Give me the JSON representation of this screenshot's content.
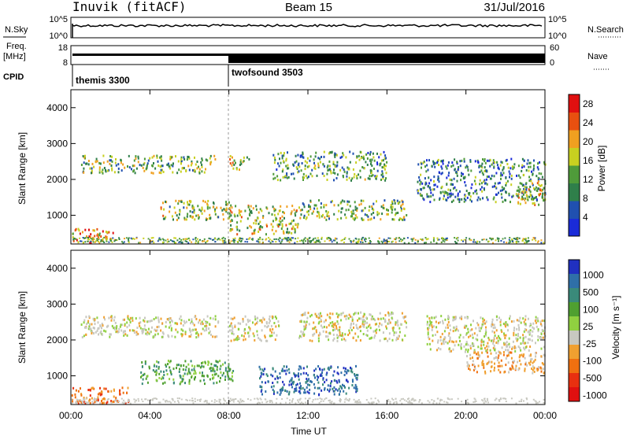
{
  "header": {
    "station": "Inuvik (fitACF)",
    "beam": "Beam 15",
    "date": "31/Jul/2016"
  },
  "top_panels": {
    "nsky_label": "N.Sky",
    "nsky_ticks": [
      "10^5",
      "10^0"
    ],
    "nsearch_label": "N.Search",
    "nsearch_ticks": [
      "10^5",
      "10^0"
    ],
    "freq_label": "Freq.",
    "freq_unit": "[MHz]",
    "freq_ticks": [
      "18",
      "8"
    ],
    "nave_label": "Nave",
    "nave_ticks": [
      "60",
      "0"
    ],
    "cpid_label": "CPID",
    "cpid_segments": [
      {
        "name": "themis 3300",
        "start_hour": 0
      },
      {
        "name": "twofsound 3503",
        "start_hour": 8
      }
    ]
  },
  "chart_data": [
    {
      "type": "heatmap",
      "title": "",
      "ylabel": "Slant Range [km]",
      "xlabel": "",
      "xlim": [
        0,
        24
      ],
      "ylim": [
        200,
        4500
      ],
      "yticks": [
        1000,
        2000,
        3000,
        4000
      ],
      "colorbar": {
        "label": "Power [dB]",
        "ticks": [
          "28",
          "24",
          "20",
          "16",
          "12",
          "8",
          "4"
        ],
        "range": [
          0,
          30
        ],
        "colors": [
          "#1a2bd8",
          "#2050b0",
          "#2f7f4a",
          "#4f9b3a",
          "#c8d020",
          "#f0a020",
          "#e85010",
          "#e01010"
        ]
      },
      "regions": [
        {
          "t0": 0.0,
          "t1": 2.2,
          "r0": 250,
          "r1": 650,
          "v": 20
        },
        {
          "t0": 0.5,
          "t1": 7.3,
          "r0": 2200,
          "r1": 2700,
          "v": 14
        },
        {
          "t0": 4.5,
          "t1": 8.2,
          "r0": 900,
          "r1": 1450,
          "v": 15
        },
        {
          "t0": 8.0,
          "t1": 11.5,
          "r0": 500,
          "r1": 1300,
          "v": 16
        },
        {
          "t0": 8.0,
          "t1": 9.0,
          "r0": 2300,
          "r1": 2700,
          "v": 18
        },
        {
          "t0": 10.2,
          "t1": 16.0,
          "r0": 2000,
          "r1": 2800,
          "v": 11
        },
        {
          "t0": 11.5,
          "t1": 17.0,
          "r0": 900,
          "r1": 1450,
          "v": 13
        },
        {
          "t0": 17.5,
          "t1": 24.0,
          "r0": 1400,
          "r1": 2600,
          "v": 9
        },
        {
          "t0": 22.5,
          "t1": 24.0,
          "r0": 1300,
          "r1": 2000,
          "v": 17
        }
      ]
    },
    {
      "type": "heatmap",
      "title": "",
      "ylabel": "Slant Range [km]",
      "xlabel": "Time UT",
      "xlim": [
        0,
        24
      ],
      "ylim": [
        200,
        4500
      ],
      "xticks": [
        "00:00",
        "04:00",
        "08:00",
        "12:00",
        "16:00",
        "20:00",
        "00:00"
      ],
      "yticks": [
        1000,
        2000,
        3000,
        4000
      ],
      "colorbar": {
        "label": "Velocity [m s^-1]",
        "ticks": [
          "1000",
          "500",
          "100",
          "25",
          "-25",
          "-100",
          "-500",
          "-1000"
        ],
        "colors": [
          "#2030c0",
          "#2f6fa8",
          "#3a8a7a",
          "#4fa030",
          "#90d040",
          "#c8c8c0",
          "#f0a030",
          "#f07010",
          "#e83010",
          "#e01010"
        ]
      },
      "regions": [
        {
          "t0": 0.0,
          "t1": 3.0,
          "r0": 250,
          "r1": 700,
          "v": "-500"
        },
        {
          "t0": 0.5,
          "t1": 7.5,
          "r0": 2100,
          "r1": 2700,
          "v": "0"
        },
        {
          "t0": 3.5,
          "t1": 8.2,
          "r0": 800,
          "r1": 1450,
          "v": "100"
        },
        {
          "t0": 8.0,
          "t1": 10.5,
          "r0": 2000,
          "r1": 2700,
          "v": "0"
        },
        {
          "t0": 9.5,
          "t1": 14.5,
          "r0": 500,
          "r1": 1300,
          "v": "500"
        },
        {
          "t0": 11.5,
          "t1": 17.0,
          "r0": 2000,
          "r1": 2800,
          "v": "0"
        },
        {
          "t0": 18.0,
          "t1": 24.0,
          "r0": 1700,
          "r1": 2700,
          "v": "0"
        },
        {
          "t0": 20.0,
          "t1": 24.0,
          "r0": 1100,
          "r1": 1700,
          "v": "-100"
        }
      ]
    }
  ],
  "time_axis": {
    "ticks": [
      "00:00",
      "04:00",
      "08:00",
      "12:00",
      "16:00",
      "20:00",
      "00:00"
    ],
    "label": "Time UT"
  }
}
